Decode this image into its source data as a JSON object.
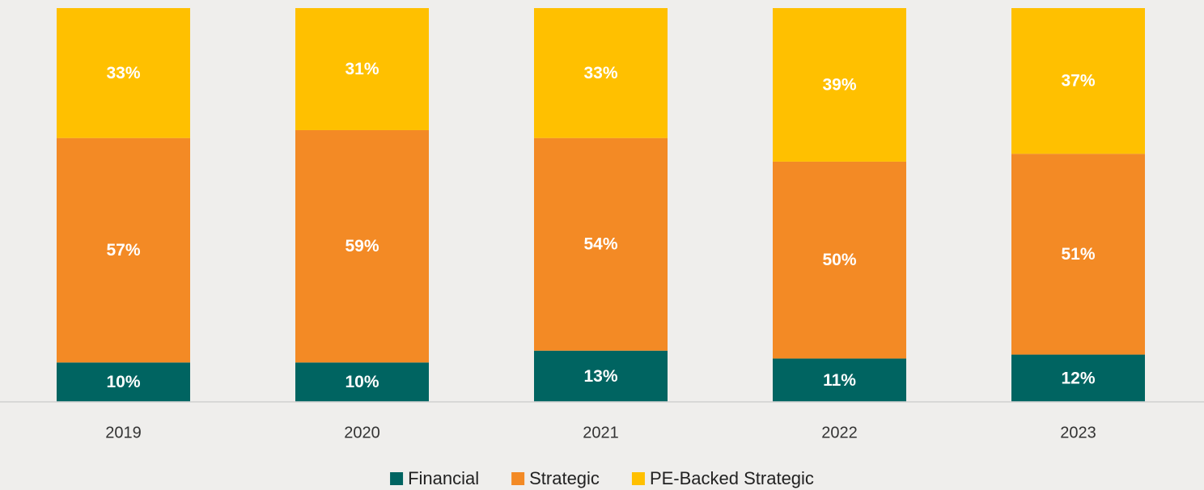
{
  "chart_data": {
    "type": "stacked_bar",
    "categories": [
      "2019",
      "2020",
      "2021",
      "2022",
      "2023"
    ],
    "ylim": [
      0,
      100
    ],
    "series": [
      {
        "name": "Financial",
        "color": "#006461",
        "values": [
          10,
          10,
          13,
          11,
          12
        ],
        "value_labels": [
          "10%",
          "10%",
          "13%",
          "11%",
          "12%"
        ]
      },
      {
        "name": "Strategic",
        "color": "#f38a25",
        "values": [
          57,
          59,
          54,
          50,
          51
        ],
        "value_labels": [
          "57%",
          "59%",
          "54%",
          "50%",
          "51%"
        ]
      },
      {
        "name": "PE-Backed Strategic",
        "color": "#ffc000",
        "values": [
          33,
          31,
          33,
          39,
          37
        ],
        "value_labels": [
          "33%",
          "31%",
          "33%",
          "39%",
          "37%"
        ]
      }
    ]
  }
}
